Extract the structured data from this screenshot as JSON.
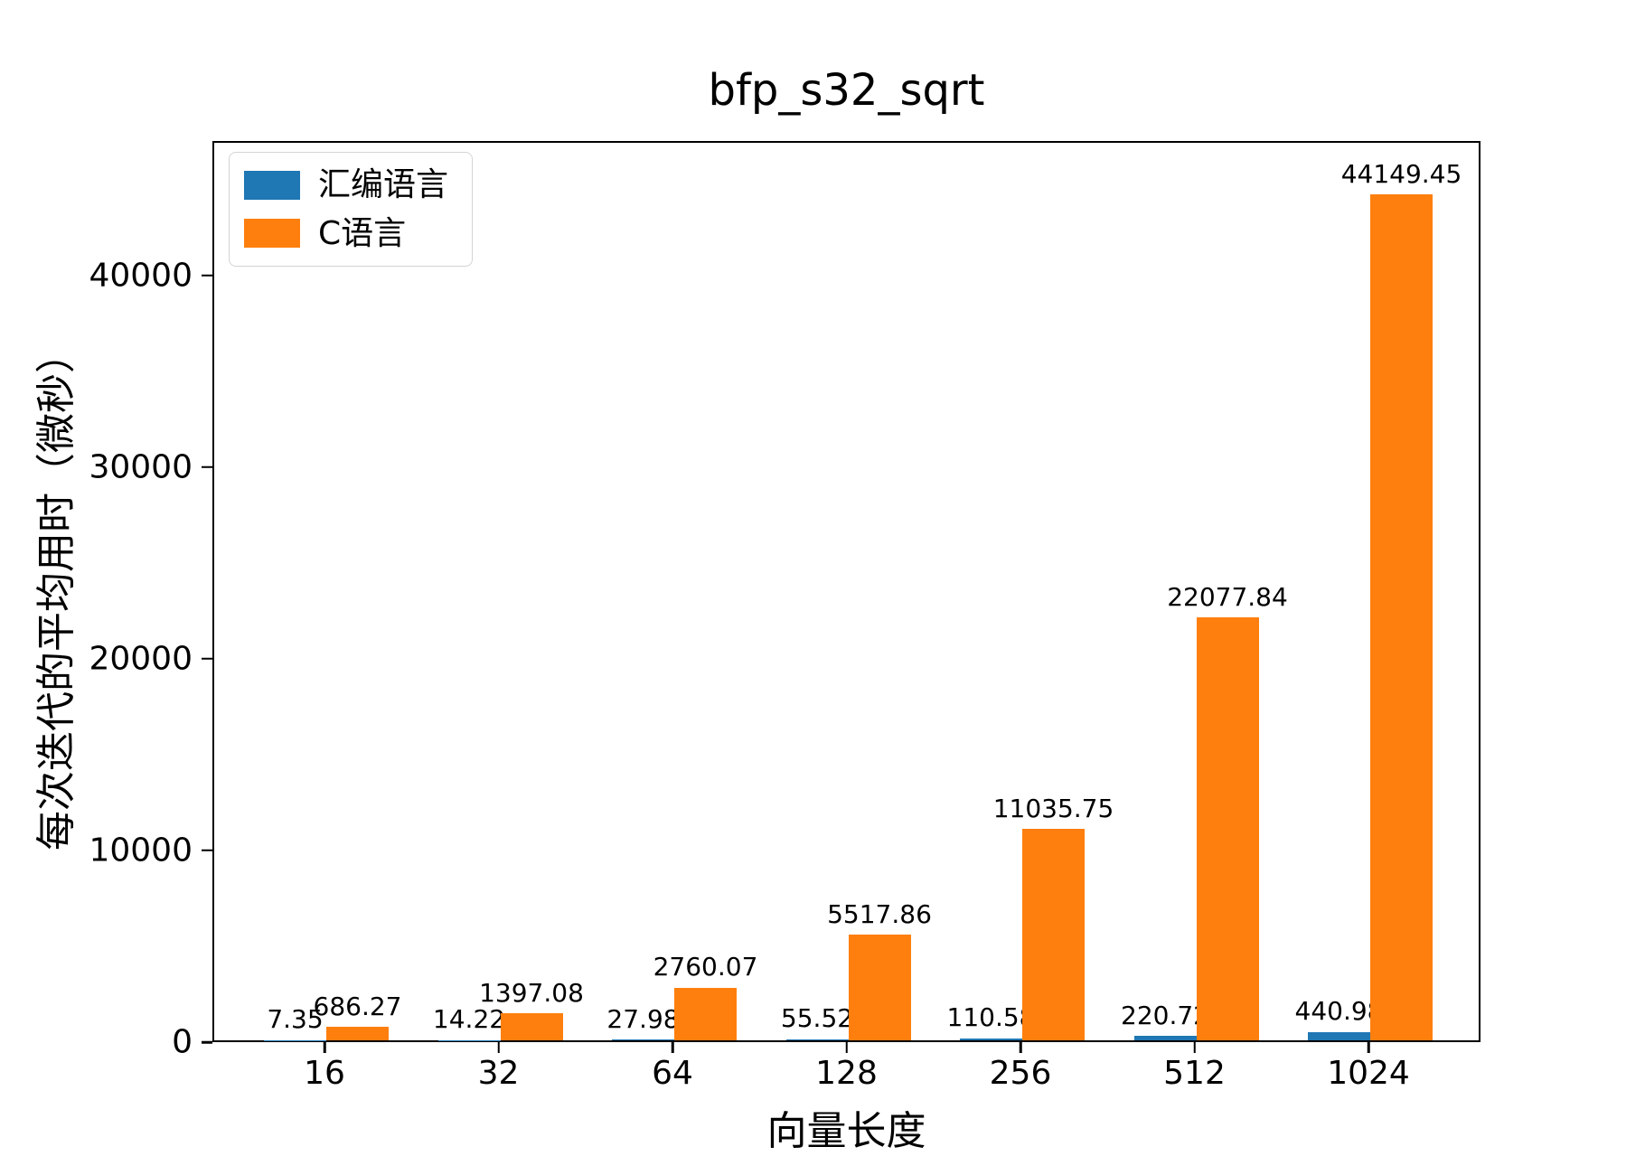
{
  "title": "bfp_s32_sqrt",
  "chart_data": {
    "type": "bar",
    "title": "bfp_s32_sqrt",
    "xlabel": "向量长度",
    "ylabel": "每次迭代的平均用时（微秒）",
    "categories": [
      "16",
      "32",
      "64",
      "128",
      "256",
      "512",
      "1024"
    ],
    "series": [
      {
        "name": "汇编语言",
        "color": "#1f77b4",
        "values": [
          7.35,
          14.22,
          27.98,
          55.52,
          110.58,
          220.72,
          440.98
        ]
      },
      {
        "name": "C语言",
        "color": "#ff7f0e",
        "values": [
          686.27,
          1397.08,
          2760.07,
          5517.86,
          11035.75,
          22077.84,
          44149.45
        ]
      }
    ],
    "bar_labels": [
      [
        "7.35",
        "14.22",
        "27.98",
        "55.52",
        "110.58",
        "220.72",
        "440.98"
      ],
      [
        "686.27",
        "1397.08",
        "2760.07",
        "5517.86",
        "11035.75",
        "22077.84",
        "44149.45"
      ]
    ],
    "yticks": [
      0,
      10000,
      20000,
      30000,
      40000
    ],
    "ylim": [
      0,
      47028
    ],
    "grid": false,
    "legend_position": "upper-left",
    "background": "#ffffff",
    "spine_color": "#000000"
  }
}
